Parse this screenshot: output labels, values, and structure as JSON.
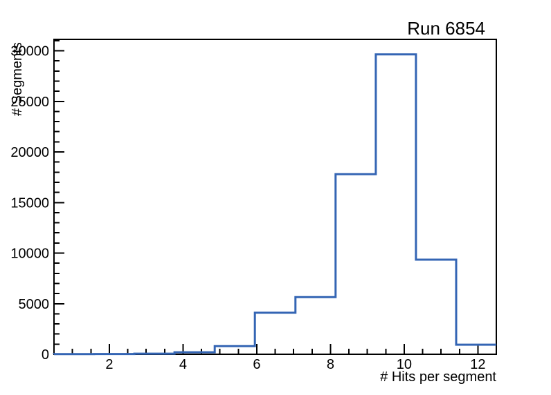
{
  "chart_data": {
    "type": "histogram",
    "style": "step-outline",
    "title": "Run 6854",
    "xlabel": "# Hits per segment",
    "ylabel": "# Segments",
    "xlim": [
      0.5,
      12.5
    ],
    "ylim": [
      0,
      31130
    ],
    "bin_edges": [
      0.5,
      1.59,
      2.68,
      3.77,
      4.86,
      5.95,
      7.05,
      8.14,
      9.23,
      10.32,
      11.41,
      12.5
    ],
    "bin_counts": [
      15,
      25,
      60,
      200,
      800,
      4100,
      5650,
      17800,
      29650,
      9350,
      950
    ],
    "x_tick_values": [
      2,
      4,
      6,
      8,
      10,
      12
    ],
    "x_tick_labels": [
      "2",
      "4",
      "6",
      "8",
      "10",
      "12"
    ],
    "x_minor_step": 0.5,
    "y_tick_values": [
      0,
      5000,
      10000,
      15000,
      20000,
      25000,
      30000
    ],
    "y_tick_labels": [
      "0",
      "5000",
      "10000",
      "15000",
      "20000",
      "25000",
      "30000"
    ],
    "y_minor_step": 1000,
    "grid": false,
    "legend": false,
    "colors": {
      "line": "#3465b4",
      "axis": "#000000",
      "background": "#ffffff",
      "text": "#000000"
    }
  }
}
